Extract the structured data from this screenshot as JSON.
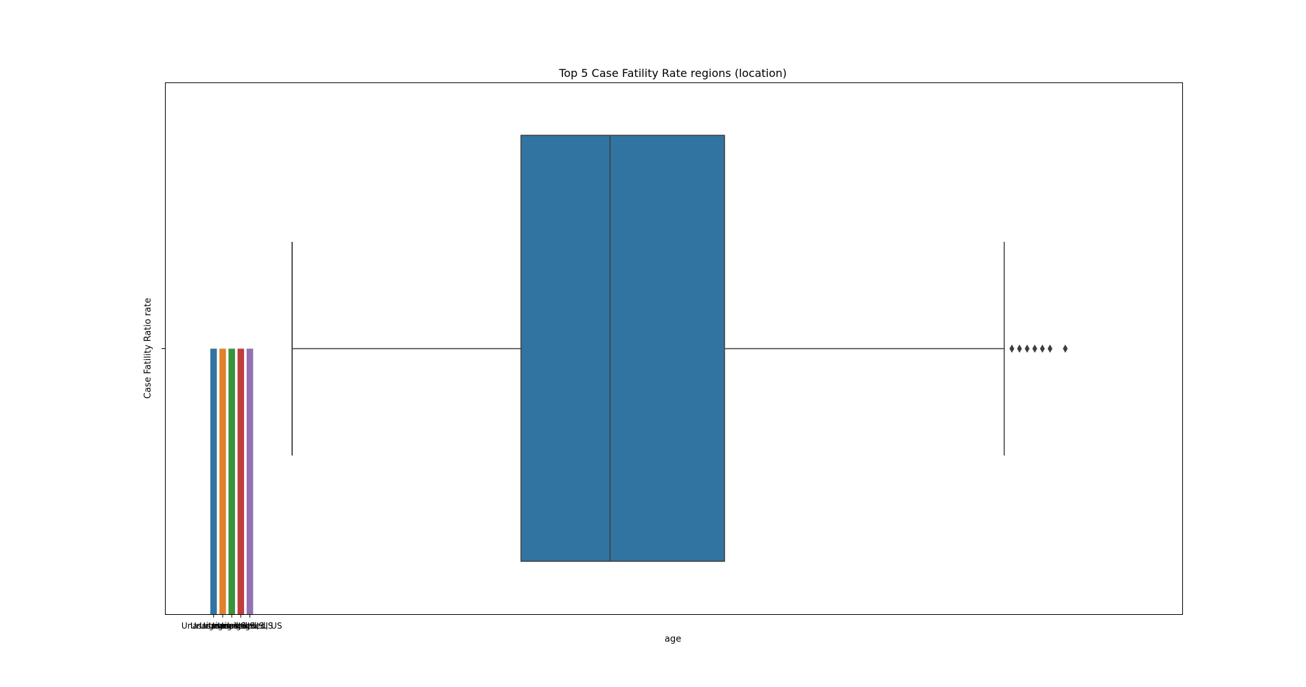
{
  "chart_data": {
    "type": "box",
    "title": "Top 5 Case Fatility Rate regions (location)",
    "xlabel": "age",
    "ylabel": "Case Fatility Ratio rate",
    "grid": false,
    "legend": "none",
    "x_tick_labels": [
      "Unassigned, US",
      "Unassigned, US",
      "Unassigned, US",
      "Unassigned, US",
      "Unassigned, US"
    ],
    "bars": {
      "categories": [
        "Unassigned, US",
        "Unassigned, US",
        "Unassigned, US",
        "Unassigned, US",
        "Unassigned, US"
      ],
      "colors": [
        "#3274a1",
        "#e1812c",
        "#3a923a",
        "#c03d3e",
        "#9372b2"
      ]
    },
    "boxplot": {
      "color": "#3274a1",
      "whisker_low": 0.2,
      "q1": 1.1,
      "median": 1.45,
      "q3": 1.9,
      "whisker_high": 3.0,
      "outliers": [
        3.03,
        3.06,
        3.09,
        3.12,
        3.15,
        3.18,
        3.24
      ]
    }
  }
}
